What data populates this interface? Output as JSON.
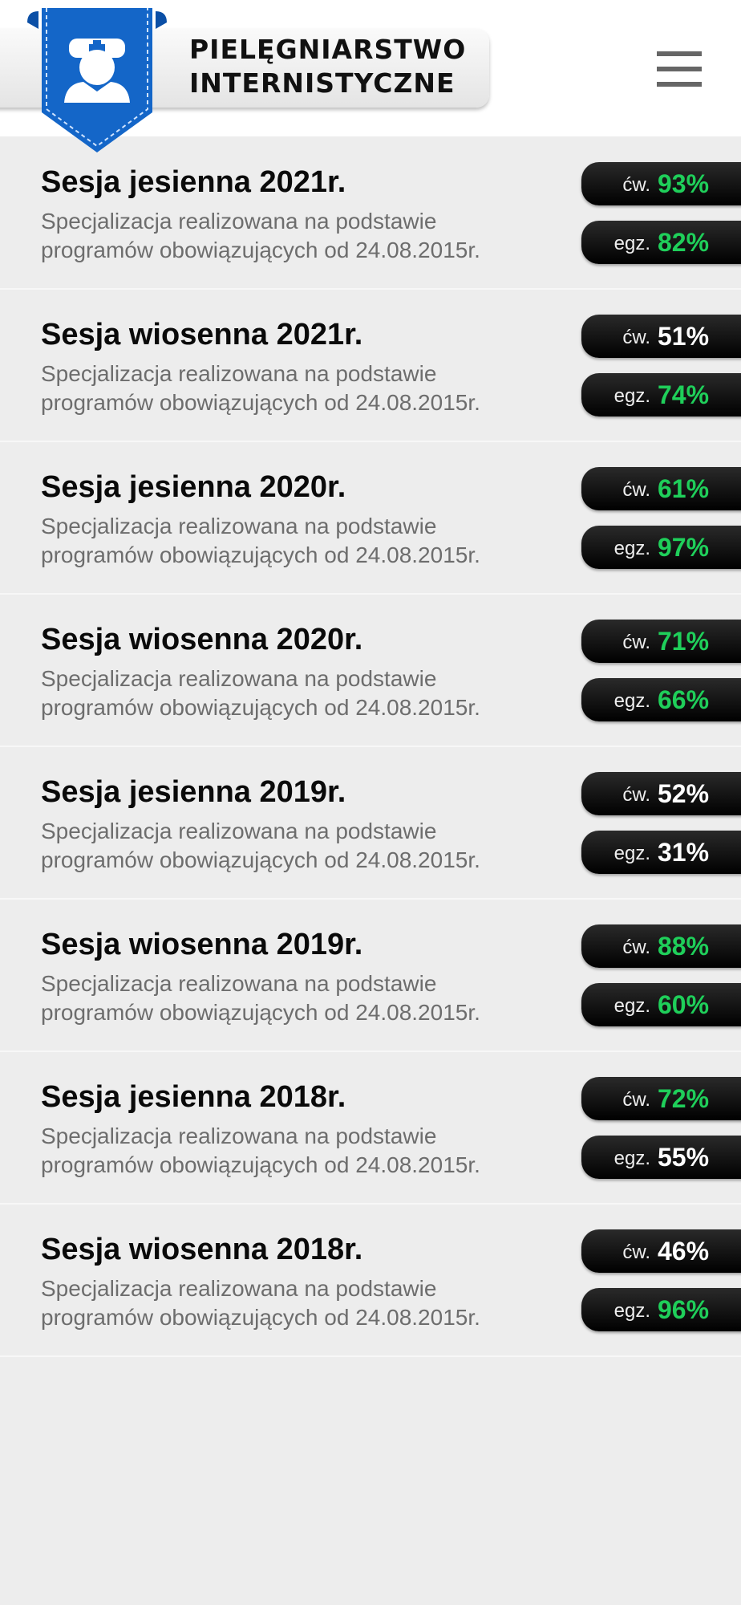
{
  "header": {
    "title_lines": [
      "PIELĘGNIARSTWO",
      "INTERNISTYCZNE"
    ]
  },
  "sessions": [
    {
      "title": "Sesja jesienna 2021r.",
      "description": "Specjalizacja realizowana na podstawie programów obowiązujących od 24.08.2015r.",
      "badges": [
        {
          "label": "ćw.",
          "value": "93%",
          "color": "#1fcf5a"
        },
        {
          "label": "egz.",
          "value": "82%",
          "color": "#1fcf5a"
        }
      ]
    },
    {
      "title": "Sesja wiosenna 2021r.",
      "description": "Specjalizacja realizowana na podstawie programów obowiązujących od 24.08.2015r.",
      "badges": [
        {
          "label": "ćw.",
          "value": "51%",
          "color": "#ffffff"
        },
        {
          "label": "egz.",
          "value": "74%",
          "color": "#1fcf5a"
        }
      ]
    },
    {
      "title": "Sesja jesienna 2020r.",
      "description": "Specjalizacja realizowana na podstawie programów obowiązujących od 24.08.2015r.",
      "badges": [
        {
          "label": "ćw.",
          "value": "61%",
          "color": "#1fcf5a"
        },
        {
          "label": "egz.",
          "value": "97%",
          "color": "#1fcf5a"
        }
      ]
    },
    {
      "title": "Sesja wiosenna 2020r.",
      "description": "Specjalizacja realizowana na podstawie programów obowiązujących od 24.08.2015r.",
      "badges": [
        {
          "label": "ćw.",
          "value": "71%",
          "color": "#1fcf5a"
        },
        {
          "label": "egz.",
          "value": "66%",
          "color": "#1fcf5a"
        }
      ]
    },
    {
      "title": "Sesja jesienna 2019r.",
      "description": "Specjalizacja realizowana na podstawie programów obowiązujących od 24.08.2015r.",
      "badges": [
        {
          "label": "ćw.",
          "value": "52%",
          "color": "#ffffff"
        },
        {
          "label": "egz.",
          "value": "31%",
          "color": "#ffffff"
        }
      ]
    },
    {
      "title": "Sesja wiosenna 2019r.",
      "description": "Specjalizacja realizowana na podstawie programów obowiązujących od 24.08.2015r.",
      "badges": [
        {
          "label": "ćw.",
          "value": "88%",
          "color": "#1fcf5a"
        },
        {
          "label": "egz.",
          "value": "60%",
          "color": "#1fcf5a"
        }
      ]
    },
    {
      "title": "Sesja jesienna 2018r.",
      "description": "Specjalizacja realizowana na podstawie programów obowiązujących od 24.08.2015r.",
      "badges": [
        {
          "label": "ćw.",
          "value": "72%",
          "color": "#1fcf5a"
        },
        {
          "label": "egz.",
          "value": "55%",
          "color": "#ffffff"
        }
      ]
    },
    {
      "title": "Sesja wiosenna 2018r.",
      "description": "Specjalizacja realizowana na podstawie programów obowiązujących od 24.08.2015r.",
      "badges": [
        {
          "label": "ćw.",
          "value": "46%",
          "color": "#ffffff"
        },
        {
          "label": "egz.",
          "value": "96%",
          "color": "#1fcf5a"
        }
      ]
    }
  ]
}
